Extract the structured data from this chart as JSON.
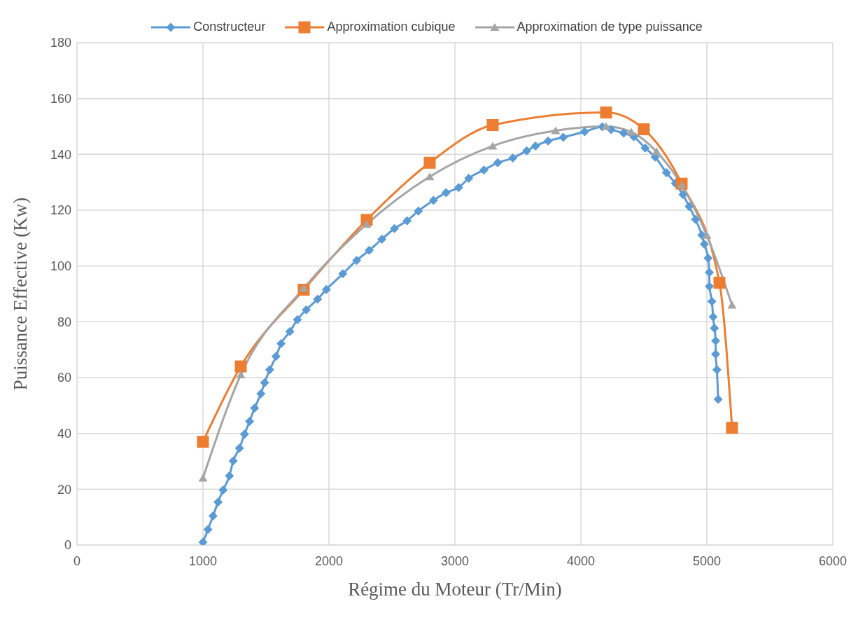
{
  "chart_data": {
    "type": "line",
    "xlabel": "Régime du Moteur (Tr/Min)",
    "ylabel": "Puissance Effective  (Kw)",
    "xlim": [
      0,
      6000
    ],
    "xticks": [
      0,
      1000,
      2000,
      3000,
      4000,
      5000,
      6000
    ],
    "ylim": [
      0,
      180
    ],
    "yticks": [
      0,
      20,
      40,
      60,
      80,
      100,
      120,
      140,
      160,
      180
    ],
    "grid": true,
    "legend": "top",
    "line_style": "solid",
    "series": [
      {
        "name": "Constructeur",
        "color": "#5b9bd5",
        "marker": "diamond",
        "x": [
          1000,
          1040,
          1080,
          1120,
          1160,
          1210,
          1240,
          1290,
          1330,
          1370,
          1410,
          1460,
          1490,
          1530,
          1580,
          1620,
          1690,
          1750,
          1820,
          1910,
          1980,
          2110,
          2220,
          2320,
          2420,
          2520,
          2620,
          2710,
          2830,
          2930,
          3030,
          3110,
          3230,
          3340,
          3460,
          3570,
          3640,
          3740,
          3860,
          4030,
          4170,
          4240,
          4340,
          4420,
          4510,
          4590,
          4680,
          4750,
          4810,
          4860,
          4910,
          4960,
          4980,
          5010,
          5020,
          5020,
          5040,
          5050,
          5060,
          5070,
          5070,
          5080,
          5090
        ],
        "values": [
          1,
          5.6,
          10.4,
          15.4,
          19.7,
          24.8,
          30.1,
          34.7,
          39.7,
          44.3,
          49.1,
          54.2,
          58.2,
          62.8,
          67.6,
          72.2,
          76.5,
          80.8,
          84.3,
          88.1,
          91.6,
          97.2,
          102,
          105.6,
          109.6,
          113.4,
          116.2,
          119.7,
          123.5,
          126.3,
          128.1,
          131.4,
          134.4,
          137,
          138.7,
          141.3,
          143,
          144.8,
          146.1,
          148.1,
          149.9,
          148.9,
          147.6,
          146.3,
          142.3,
          139,
          133.4,
          129.6,
          125.6,
          121.3,
          116.7,
          111.1,
          107.8,
          102.8,
          97.7,
          92.7,
          87.3,
          81.8,
          77.7,
          73.2,
          68.4,
          62.8,
          52.2
        ]
      },
      {
        "name": "Approximation cubique",
        "color": "#ed7d31",
        "marker": "square",
        "x": [
          1000,
          1300,
          1800,
          2300,
          2800,
          3300,
          4200,
          4500,
          4800,
          5100,
          5200
        ],
        "values": [
          37,
          64,
          91.5,
          116.5,
          137,
          150.5,
          155,
          149,
          129.5,
          94,
          42
        ]
      },
      {
        "name": "Approximation de type puissance",
        "color": "#a5a5a5",
        "marker": "triangle",
        "x": [
          1000,
          1300,
          1800,
          2300,
          2800,
          3300,
          3800,
          4200,
          4400,
          4600,
          4800,
          5000,
          5200
        ],
        "values": [
          24,
          61,
          92,
          115,
          132,
          143,
          148.5,
          150,
          148,
          141,
          129,
          111,
          86
        ]
      }
    ]
  }
}
